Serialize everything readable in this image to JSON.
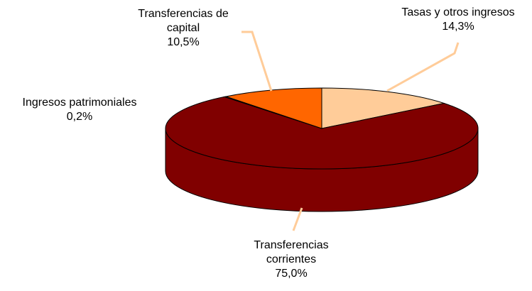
{
  "chart_data": {
    "type": "pie3d",
    "categories": [
      "Tasas y otros ingresos",
      "Transferencias corrientes",
      "Ingresos patrimoniales",
      "Transferencias de capital"
    ],
    "values": [
      14.3,
      75.0,
      0.2,
      10.5
    ],
    "value_labels": [
      "14,3%",
      "75,0%",
      "0,2%",
      "10,5%"
    ],
    "colors": [
      "#FFCC99",
      "#800000",
      "#993300",
      "#FF6600"
    ]
  }
}
